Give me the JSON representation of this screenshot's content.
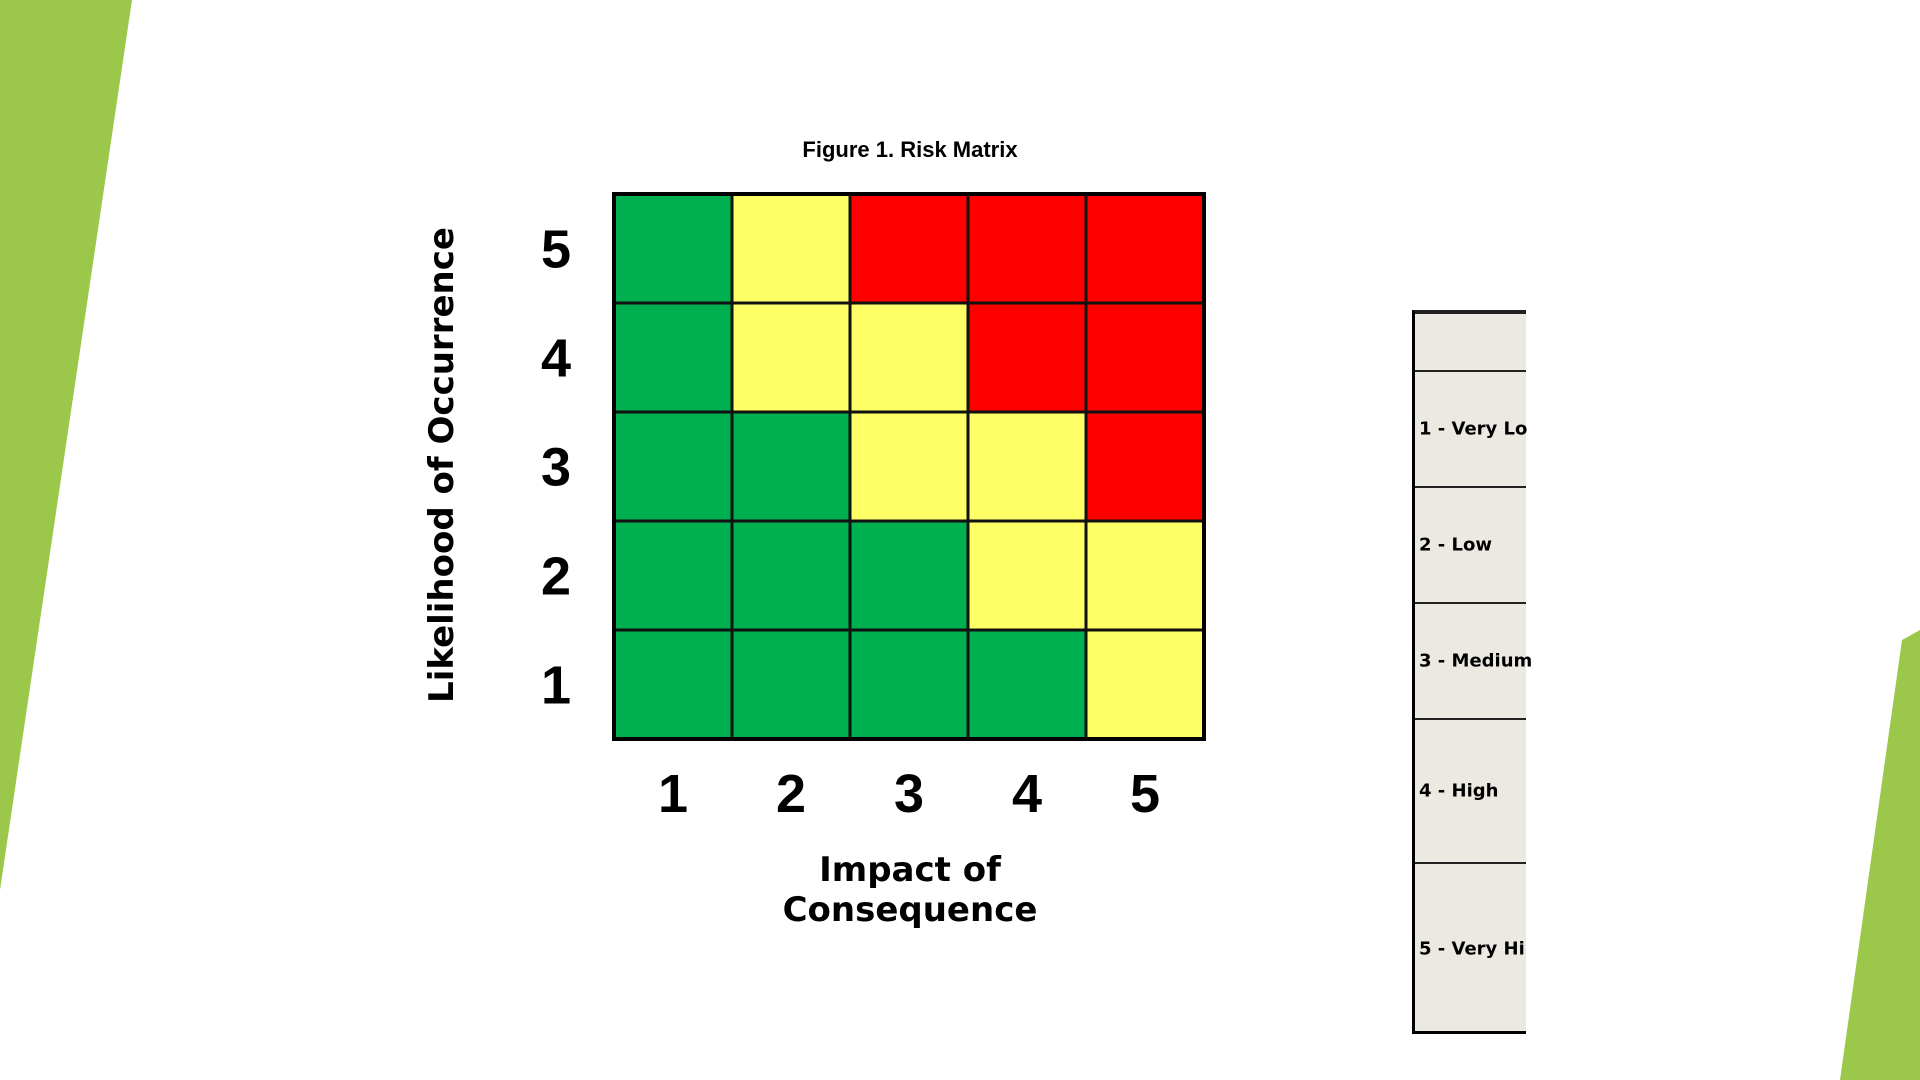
{
  "chart_data": {
    "type": "heatmap",
    "title": "Figure 1. Risk Matrix",
    "xlabel": "Impact of Consequence",
    "ylabel": "Likelihood of Occurrence",
    "x_categories": [
      "1",
      "2",
      "3",
      "4",
      "5"
    ],
    "y_categories": [
      "1",
      "2",
      "3",
      "4",
      "5"
    ],
    "cells": [
      {
        "likelihood": 5,
        "levels": [
          "green",
          "yellow",
          "red",
          "red",
          "red"
        ]
      },
      {
        "likelihood": 4,
        "levels": [
          "green",
          "yellow",
          "yellow",
          "red",
          "red"
        ]
      },
      {
        "likelihood": 3,
        "levels": [
          "green",
          "green",
          "yellow",
          "yellow",
          "red"
        ]
      },
      {
        "likelihood": 2,
        "levels": [
          "green",
          "green",
          "green",
          "yellow",
          "yellow"
        ]
      },
      {
        "likelihood": 1,
        "levels": [
          "green",
          "green",
          "green",
          "green",
          "yellow"
        ]
      }
    ],
    "colors": {
      "green": "#00b050",
      "yellow": "#ffff66",
      "red": "#ff0000"
    }
  },
  "legend_table": {
    "rows": [
      "1 - Very Lo",
      "2 - Low",
      "3 - Medium",
      "4 - High",
      "5 - Very Hi"
    ]
  },
  "theme": {
    "accent": "#9bc84a"
  }
}
